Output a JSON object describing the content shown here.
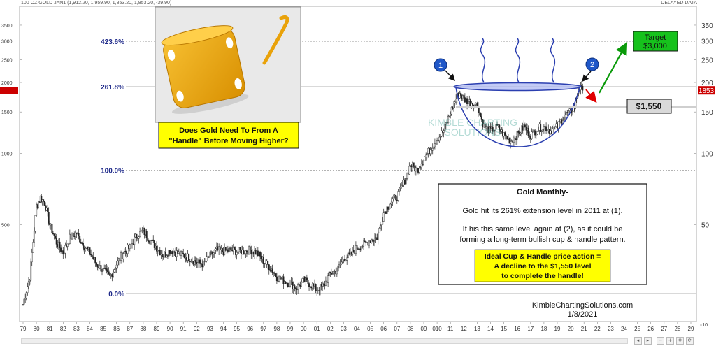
{
  "header": {
    "symbol_info": "100 OZ GOLD JAN1 (1,912.20, 1,959.90, 1,853.20, 1,853.20, -39.90)",
    "delayed": "DELAYED DATA",
    "multiplier": "x10"
  },
  "watermark": {
    "line1": "KIMBLE CHARTING",
    "line2": "SOLUTIONS"
  },
  "inset": {
    "caption_line1": "Does Gold Need To From A",
    "caption_line2": "\"Handle\" Before Moving Higher?"
  },
  "annotations": {
    "marker1": "1",
    "marker2": "2",
    "target_label": "Target",
    "target_value": "$3,000",
    "support_label": "$1,550"
  },
  "commentary": {
    "title": "Gold Monthly-",
    "line1": "Gold hit its 261% extension level in 2011 at (1).",
    "line2": "It his this same level again at (2), as it could be",
    "line3": "forming a long-term bullish cup & handle pattern.",
    "highlight1": "Ideal Cup & Handle price action =",
    "highlight2": "A decline to the $1,550 level",
    "highlight3": "to complete the handle!"
  },
  "credits": {
    "site": "KimbleChartingSolutions.com",
    "date": "1/8/2021"
  },
  "chart_data": {
    "type": "candlestick",
    "title": "",
    "scale": "log",
    "y_left_ticks": [
      3500,
      3000,
      2500,
      2000,
      1500,
      1000,
      500
    ],
    "y_right_ticks": [
      "350",
      "300",
      "250",
      "200",
      "150",
      "100",
      "50"
    ],
    "last_price_label": "1853",
    "fib_levels": [
      {
        "label": "423.6%",
        "price": 2990
      },
      {
        "label": "261.8%",
        "price": 1920
      },
      {
        "label": "100.0%",
        "price": 850
      },
      {
        "label": "0.0%",
        "price": 255
      }
    ],
    "x_labels": [
      "79",
      "80",
      "81",
      "82",
      "83",
      "84",
      "85",
      "86",
      "87",
      "88",
      "89",
      "90",
      "91",
      "92",
      "93",
      "94",
      "95",
      "96",
      "97",
      "98",
      "99",
      "00",
      "01",
      "02",
      "03",
      "04",
      "05",
      "06",
      "07",
      "08",
      "09",
      "010",
      "11",
      "12",
      "13",
      "14",
      "15",
      "16",
      "17",
      "18",
      "19",
      "20",
      "21",
      "22",
      "23",
      "24",
      "25",
      "26",
      "27",
      "28",
      "29"
    ],
    "x_start_year": 1979,
    "support_price": 1550,
    "target_price": 3000,
    "series": [
      {
        "x": [
          1979.0,
          1979.5,
          1980.0,
          1980.3,
          1980.6,
          1981.0,
          1981.5,
          1982.0,
          1982.5,
          1983.0,
          1983.5,
          1984.0,
          1984.5,
          1985.0,
          1985.5,
          1986.0,
          1986.5,
          1987.0,
          1987.5,
          1988.0,
          1988.5,
          1989.0,
          1989.5,
          1990.0,
          1990.5,
          1991.0,
          1991.5,
          1992.0,
          1992.5,
          1993.0,
          1993.5,
          1994.0,
          1994.5,
          1995.0,
          1995.5,
          1996.0,
          1996.5,
          1997.0,
          1997.5,
          1998.0,
          1998.5,
          1999.0,
          1999.5,
          2000.0,
          2000.5,
          2001.0,
          2001.5,
          2002.0,
          2002.5,
          2003.0,
          2003.5,
          2004.0,
          2004.5,
          2005.0,
          2005.5,
          2006.0,
          2006.5,
          2007.0,
          2007.5,
          2008.0,
          2008.5,
          2009.0,
          2009.5,
          2010.0,
          2010.5,
          2011.0,
          2011.5,
          2011.7,
          2012.0,
          2012.5,
          2013.0,
          2013.5,
          2014.0,
          2014.5,
          2015.0,
          2015.5,
          2016.0,
          2016.5,
          2017.0,
          2017.5,
          2018.0,
          2018.5,
          2019.0,
          2019.5,
          2020.0,
          2020.3,
          2020.6,
          2020.9
        ],
        "close": [
          230,
          300,
          600,
          650,
          620,
          500,
          420,
          380,
          440,
          460,
          410,
          380,
          340,
          320,
          300,
          340,
          380,
          400,
          450,
          470,
          430,
          400,
          370,
          390,
          380,
          370,
          360,
          345,
          340,
          370,
          390,
          385,
          390,
          385,
          385,
          390,
          380,
          350,
          330,
          300,
          290,
          280,
          270,
          290,
          280,
          265,
          275,
          310,
          320,
          360,
          370,
          400,
          410,
          430,
          440,
          560,
          620,
          660,
          750,
          900,
          850,
          950,
          1050,
          1150,
          1250,
          1500,
          1750,
          1800,
          1700,
          1650,
          1600,
          1300,
          1250,
          1300,
          1200,
          1130,
          1200,
          1300,
          1200,
          1270,
          1300,
          1250,
          1300,
          1450,
          1500,
          1600,
          1900,
          1853
        ]
      }
    ]
  }
}
